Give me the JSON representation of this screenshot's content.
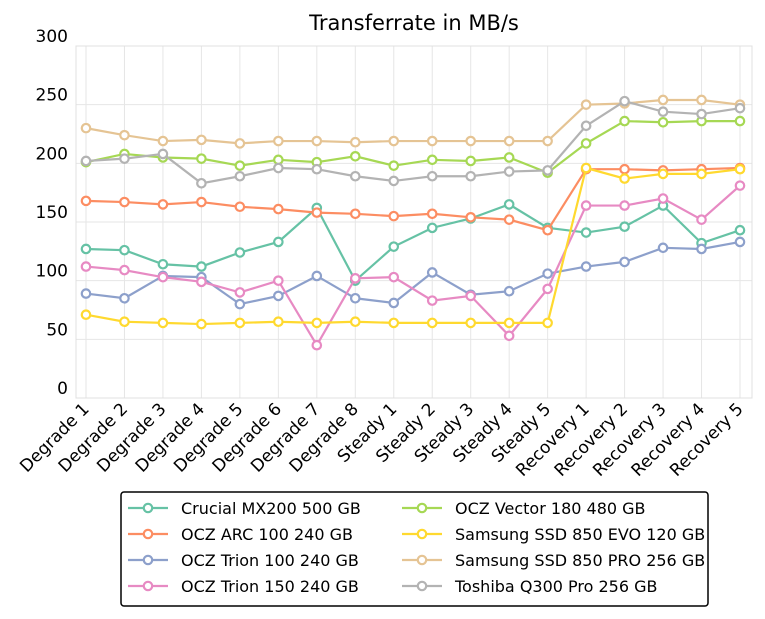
{
  "chart_data": {
    "type": "line",
    "title": "Transferrate in MB/s",
    "xlabel": "",
    "ylabel": "",
    "ylim": [
      0,
      300
    ],
    "yticks": [
      0,
      50,
      100,
      150,
      200,
      250,
      300
    ],
    "grid": true,
    "legend_position": "bottom",
    "categories": [
      "Degrade 1",
      "Degrade 2",
      "Degrade 3",
      "Degrade 4",
      "Degrade 5",
      "Degrade 6",
      "Degrade 7",
      "Degrade 8",
      "Steady 1",
      "Steady 2",
      "Steady 3",
      "Steady 4",
      "Steady 5",
      "Recovery 1",
      "Recovery 2",
      "Recovery 3",
      "Recovery 4",
      "Recovery 5"
    ],
    "series": [
      {
        "name": "Crucial MX200 500 GB",
        "color": "#66c2a5",
        "values": [
          127,
          126,
          114,
          112,
          124,
          133,
          162,
          100,
          129,
          145,
          153,
          165,
          145,
          141,
          146,
          164,
          132,
          143
        ]
      },
      {
        "name": "OCZ ARC 100 240 GB",
        "color": "#fc8d62",
        "values": [
          168,
          167,
          165,
          167,
          163,
          161,
          158,
          157,
          155,
          157,
          154,
          152,
          143,
          195,
          195,
          194,
          195,
          196
        ]
      },
      {
        "name": "OCZ Trion 100 240 GB",
        "color": "#8da0cb",
        "values": [
          89,
          85,
          104,
          103,
          80,
          87,
          104,
          85,
          81,
          107,
          88,
          91,
          106,
          112,
          116,
          128,
          127,
          133
        ]
      },
      {
        "name": "OCZ Trion 150 240 GB",
        "color": "#e78ac3",
        "values": [
          112,
          109,
          103,
          99,
          90,
          100,
          45,
          102,
          103,
          83,
          87,
          53,
          93,
          164,
          164,
          170,
          152,
          181
        ]
      },
      {
        "name": "OCZ Vector 180 480 GB",
        "color": "#a6d854",
        "values": [
          201,
          208,
          205,
          204,
          198,
          203,
          201,
          206,
          198,
          203,
          202,
          205,
          192,
          217,
          236,
          235,
          236,
          236
        ]
      },
      {
        "name": "Samsung SSD 850 EVO 120 GB",
        "color": "#ffd92f",
        "values": [
          71,
          65,
          64,
          63,
          64,
          65,
          64,
          65,
          64,
          64,
          64,
          64,
          64,
          196,
          187,
          191,
          191,
          195
        ]
      },
      {
        "name": "Samsung SSD 850 PRO 256 GB",
        "color": "#e5c494",
        "values": [
          230,
          224,
          219,
          220,
          217,
          219,
          219,
          218,
          219,
          219,
          219,
          219,
          219,
          250,
          251,
          254,
          254,
          250
        ]
      },
      {
        "name": "Toshiba Q300 Pro 256 GB",
        "color": "#b3b3b3",
        "values": [
          202,
          204,
          208,
          183,
          189,
          196,
          195,
          189,
          185,
          189,
          189,
          193,
          194,
          232,
          253,
          244,
          242,
          247
        ]
      }
    ]
  }
}
